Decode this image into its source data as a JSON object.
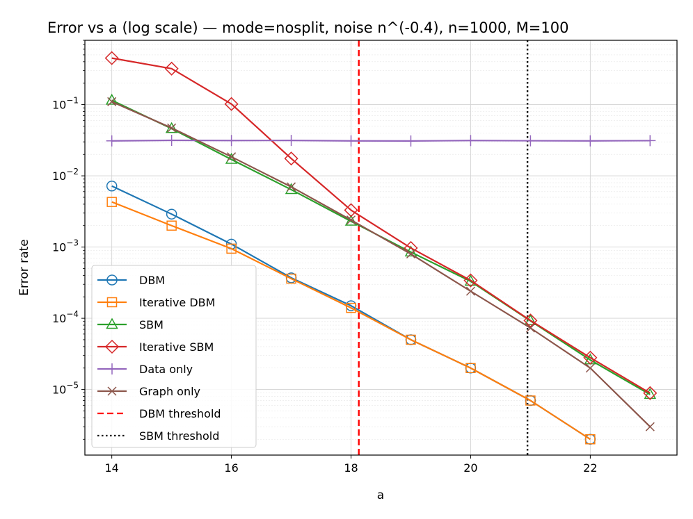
{
  "chart_data": {
    "type": "line",
    "title": "Error vs a (log scale) — mode=nosplit, noise n^(-0.4), n=1000, M=100",
    "xlabel": "a",
    "ylabel": "Error rate",
    "yscale": "log",
    "xlim": [
      13.55,
      23.45
    ],
    "ylim": [
      1.2e-06,
      0.8
    ],
    "xticks": [
      14,
      16,
      18,
      20,
      22
    ],
    "yticks": [
      {
        "value": 0.1,
        "base": "10",
        "exp": "−1"
      },
      {
        "value": 0.01,
        "base": "10",
        "exp": "−2"
      },
      {
        "value": 0.001,
        "base": "10",
        "exp": "−3"
      },
      {
        "value": 0.0001,
        "base": "10",
        "exp": "−4"
      },
      {
        "value": 1e-05,
        "base": "10",
        "exp": "−5"
      }
    ],
    "grid": true,
    "legend_position": "lower-left",
    "series": [
      {
        "name": "DBM",
        "color": "#1f77b4",
        "marker": "circle",
        "style": "solid",
        "x": [
          14,
          15,
          16,
          17,
          18,
          19,
          20,
          21,
          22
        ],
        "y": [
          0.0072,
          0.0029,
          0.0011,
          0.00037,
          0.00015,
          5e-05,
          2e-05,
          7e-06,
          2e-06
        ]
      },
      {
        "name": "Iterative DBM",
        "color": "#ff7f0e",
        "marker": "square",
        "style": "solid",
        "x": [
          14,
          15,
          16,
          17,
          18,
          19,
          20,
          21,
          22
        ],
        "y": [
          0.0043,
          0.002,
          0.00095,
          0.00036,
          0.00014,
          5e-05,
          2e-05,
          7e-06,
          2e-06
        ]
      },
      {
        "name": "SBM",
        "color": "#2ca02c",
        "marker": "triangle",
        "style": "solid",
        "x": [
          14,
          15,
          16,
          17,
          18,
          19,
          20,
          21,
          22,
          23
        ],
        "y": [
          0.115,
          0.046,
          0.017,
          0.0064,
          0.0023,
          0.00085,
          0.00033,
          9.2e-05,
          2.6e-05,
          8.5e-06
        ]
      },
      {
        "name": "Iterative SBM",
        "color": "#d62728",
        "marker": "diamond",
        "style": "solid",
        "x": [
          14,
          15,
          16,
          17,
          18,
          19,
          20,
          21,
          22,
          23
        ],
        "y": [
          0.45,
          0.32,
          0.102,
          0.0175,
          0.0033,
          0.00097,
          0.00034,
          9.3e-05,
          2.8e-05,
          8.9e-06
        ]
      },
      {
        "name": "Data only",
        "color": "#9467bd",
        "marker": "plus",
        "style": "solid",
        "x": [
          14,
          15,
          16,
          17,
          18,
          19,
          20,
          21,
          22,
          23
        ],
        "y": [
          0.031,
          0.0315,
          0.0313,
          0.0314,
          0.031,
          0.0309,
          0.0313,
          0.0311,
          0.031,
          0.0312
        ]
      },
      {
        "name": "Graph only",
        "color": "#8c564b",
        "marker": "x",
        "style": "solid",
        "x": [
          14,
          15,
          16,
          17,
          18,
          19,
          20,
          21,
          22,
          23
        ],
        "y": [
          0.11,
          0.047,
          0.0185,
          0.007,
          0.0024,
          0.0008,
          0.00024,
          7.3e-05,
          2e-05,
          3e-06
        ]
      }
    ],
    "vlines": [
      {
        "name": "DBM threshold",
        "x": 18.13,
        "color": "#ff0000",
        "style": "dashed"
      },
      {
        "name": "SBM threshold",
        "x": 20.95,
        "color": "#000000",
        "style": "dotted"
      }
    ]
  }
}
